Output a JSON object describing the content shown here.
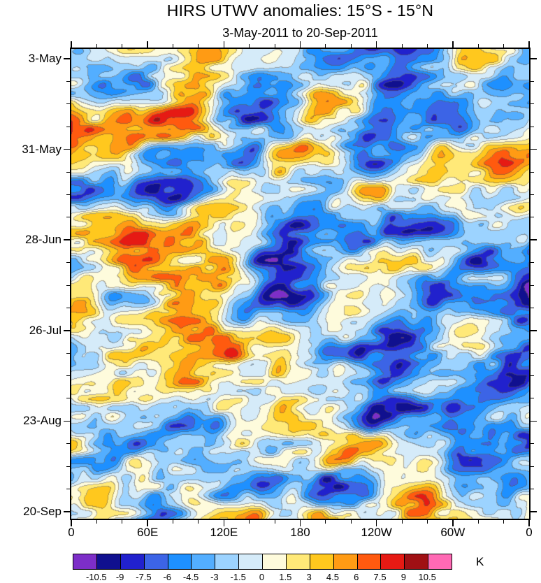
{
  "chart_data": {
    "type": "heatmap",
    "title": "HIRS UTWV anomalies: 15°S - 15°N",
    "subtitle": "3-May-2011 to 20-Sep-2011",
    "x_axis": {
      "meaning": "longitude around the globe",
      "tick_labels": [
        "0",
        "60E",
        "120E",
        "180",
        "120W",
        "60W",
        "0"
      ],
      "minor_ticks_per_interval": 2,
      "range_deg_east": [
        0,
        360
      ]
    },
    "y_axis": {
      "meaning": "date, increasing downward",
      "tick_labels": [
        "3-May",
        "31-May",
        "28-Jun",
        "26-Jul",
        "23-Aug",
        "20-Sep"
      ],
      "minor_ticks_per_interval": 3,
      "range": [
        "3-May-2011",
        "20-Sep-2011"
      ]
    },
    "colorbar": {
      "unit": "K",
      "boundaries": [
        -10.5,
        -9,
        -7.5,
        -6,
        -4.5,
        -3,
        -1.5,
        0,
        1.5,
        3,
        4.5,
        6,
        7.5,
        9,
        10.5
      ],
      "colors": [
        "#7D2EC8",
        "#10108F",
        "#2121CD",
        "#3C64E6",
        "#1E90FF",
        "#53AEFF",
        "#9CD3FF",
        "#D5EBF9",
        "#FEFBDC",
        "#FFE978",
        "#FFC81E",
        "#FF9B14",
        "#FF5A0F",
        "#E61A14",
        "#A01014",
        "#FF69B4"
      ],
      "legend_position": "horizontal labelbar below plot"
    },
    "field": {
      "kind": "filled-contour anomaly field (Hovmoller: time vs longitude)",
      "contour_interval": 1.5,
      "approx_range_K": [
        -12,
        12
      ],
      "note": "dense speckled anomaly field reproduced procedurally from the colorbar levels",
      "seed": 20110503
    },
    "grid": false
  }
}
